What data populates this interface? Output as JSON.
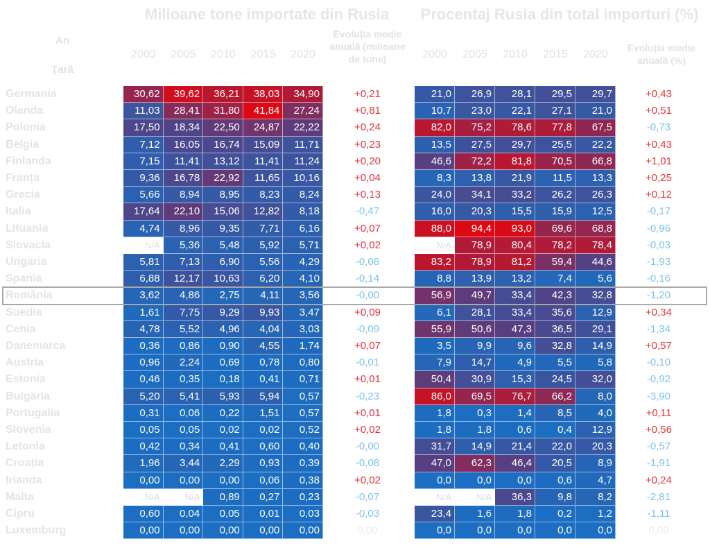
{
  "header": {
    "title_left": "Milioane tone importate din Rusia",
    "title_right": "Procentaj Rusia din total importuri (%)",
    "year_label": "An",
    "country_label": "Țară",
    "change_left": "Evoluția medie anuală (milioane de tone)",
    "change_right": "Evoluția medie anuală (%)"
  },
  "years": [
    "2000",
    "2005",
    "2010",
    "2015",
    "2020"
  ],
  "rows": [
    {
      "country": "Germania",
      "tons": [
        "30,62",
        "39,62",
        "36,21",
        "38,03",
        "34,90"
      ],
      "tons_change": "+0,21",
      "share": [
        "21,0",
        "26,9",
        "28,1",
        "29,5",
        "29,7"
      ],
      "share_change": "+0,43"
    },
    {
      "country": "Olanda",
      "tons": [
        "11,03",
        "28,41",
        "31,80",
        "41,84",
        "27,24"
      ],
      "tons_change": "+0,81",
      "share": [
        "10,7",
        "23,0",
        "22,1",
        "27,1",
        "21,0"
      ],
      "share_change": "+0,51"
    },
    {
      "country": "Polonia",
      "tons": [
        "17,50",
        "18,34",
        "22,50",
        "24,87",
        "22,22"
      ],
      "tons_change": "+0,24",
      "share": [
        "82,0",
        "75,2",
        "78,6",
        "77,8",
        "67,5"
      ],
      "share_change": "-0,73"
    },
    {
      "country": "Belgia",
      "tons": [
        "7,12",
        "16,05",
        "16,74",
        "15,09",
        "11,71"
      ],
      "tons_change": "+0,23",
      "share": [
        "13,5",
        "27,5",
        "29,7",
        "25,5",
        "22,2"
      ],
      "share_change": "+0,43"
    },
    {
      "country": "Finlanda",
      "tons": [
        "7,15",
        "11,41",
        "13,12",
        "11,41",
        "11,24"
      ],
      "tons_change": "+0,20",
      "share": [
        "46,6",
        "72,2",
        "81,8",
        "70,5",
        "66,8"
      ],
      "share_change": "+1,01"
    },
    {
      "country": "Franța",
      "tons": [
        "9,36",
        "16,78",
        "22,92",
        "11,65",
        "10,16"
      ],
      "tons_change": "+0,04",
      "share": [
        "8,3",
        "13,8",
        "21,9",
        "11,5",
        "13,3"
      ],
      "share_change": "+0,25"
    },
    {
      "country": "Grecia",
      "tons": [
        "5,66",
        "8,94",
        "8,95",
        "8,23",
        "8,24"
      ],
      "tons_change": "+0,13",
      "share": [
        "24,0",
        "34,1",
        "33,2",
        "26,2",
        "26,3"
      ],
      "share_change": "+0,12"
    },
    {
      "country": "Italia",
      "tons": [
        "17,64",
        "22,10",
        "15,06",
        "12,82",
        "8,18"
      ],
      "tons_change": "-0,47",
      "share": [
        "16,0",
        "20,3",
        "15,5",
        "15,9",
        "12,5"
      ],
      "share_change": "-0,17"
    },
    {
      "country": "Lituania",
      "tons": [
        "4,74",
        "8,96",
        "9,35",
        "7,71",
        "6,16"
      ],
      "tons_change": "+0,07",
      "share": [
        "88,0",
        "94,4",
        "93,0",
        "69,6",
        "68,8"
      ],
      "share_change": "-0,96"
    },
    {
      "country": "Slovacia",
      "tons": [
        "N/A",
        "5,36",
        "5,48",
        "5,92",
        "5,71"
      ],
      "tons_change": "+0,02",
      "share": [
        "N/A",
        "78,9",
        "80,4",
        "78,2",
        "78,4"
      ],
      "share_change": "-0,03"
    },
    {
      "country": "Ungaria",
      "tons": [
        "5,81",
        "7,13",
        "6,90",
        "5,56",
        "4,29"
      ],
      "tons_change": "-0,08",
      "share": [
        "83,2",
        "78,9",
        "81,2",
        "59,4",
        "44,6"
      ],
      "share_change": "-1,93"
    },
    {
      "country": "Spania",
      "tons": [
        "6,88",
        "12,17",
        "10,63",
        "6,20",
        "4,10"
      ],
      "tons_change": "-0,14",
      "share": [
        "8,8",
        "13,9",
        "13,2",
        "7,4",
        "5,6"
      ],
      "share_change": "-0,16"
    },
    {
      "country": "România",
      "tons": [
        "3,62",
        "4,86",
        "2,75",
        "4,11",
        "3,56"
      ],
      "tons_change": "-0,00",
      "share": [
        "56,9",
        "49,7",
        "33,4",
        "42,3",
        "32,8"
      ],
      "share_change": "-1,20",
      "highlighted": true
    },
    {
      "country": "Suedia",
      "tons": [
        "1,61",
        "7,75",
        "9,29",
        "9,93",
        "3,47"
      ],
      "tons_change": "+0,09",
      "share": [
        "6,1",
        "28,1",
        "33,4",
        "35,6",
        "12,9"
      ],
      "share_change": "+0,34"
    },
    {
      "country": "Cehia",
      "tons": [
        "4,78",
        "5,52",
        "4,96",
        "4,04",
        "3,03"
      ],
      "tons_change": "-0,09",
      "share": [
        "55,9",
        "50,6",
        "47,3",
        "36,5",
        "29,1"
      ],
      "share_change": "-1,34"
    },
    {
      "country": "Danemarca",
      "tons": [
        "0,36",
        "0,86",
        "0,90",
        "4,55",
        "1,74"
      ],
      "tons_change": "+0,07",
      "share": [
        "3,5",
        "9,9",
        "9,6",
        "32,8",
        "14,9"
      ],
      "share_change": "+0,57"
    },
    {
      "country": "Austria",
      "tons": [
        "0,96",
        "2,24",
        "0,69",
        "0,78",
        "0,80"
      ],
      "tons_change": "-0,01",
      "share": [
        "7,9",
        "14,7",
        "4,9",
        "5,5",
        "5,8"
      ],
      "share_change": "-0,10"
    },
    {
      "country": "Estonia",
      "tons": [
        "0,46",
        "0,35",
        "0,18",
        "0,41",
        "0,71"
      ],
      "tons_change": "+0,01",
      "share": [
        "50,4",
        "30,9",
        "15,3",
        "24,5",
        "32,0"
      ],
      "share_change": "-0,92"
    },
    {
      "country": "Bulgaria",
      "tons": [
        "5,20",
        "5,41",
        "5,93",
        "5,94",
        "0,57"
      ],
      "tons_change": "-0,23",
      "share": [
        "86,0",
        "69,5",
        "76,7",
        "66,2",
        "8,0"
      ],
      "share_change": "-3,90"
    },
    {
      "country": "Portugalia",
      "tons": [
        "0,31",
        "0,06",
        "0,22",
        "1,51",
        "0,57"
      ],
      "tons_change": "+0,01",
      "share": [
        "1,8",
        "0,3",
        "1,4",
        "8,5",
        "4,0"
      ],
      "share_change": "+0,11"
    },
    {
      "country": "Slovenia",
      "tons": [
        "0,05",
        "0,05",
        "0,02",
        "0,02",
        "0,52"
      ],
      "tons_change": "+0,02",
      "share": [
        "1,8",
        "1,8",
        "0,6",
        "0,4",
        "12,9"
      ],
      "share_change": "+0,56"
    },
    {
      "country": "Letonia",
      "tons": [
        "0,42",
        "0,34",
        "0,41",
        "0,60",
        "0,40"
      ],
      "tons_change": "-0,00",
      "share": [
        "31,7",
        "14,9",
        "21,4",
        "22,0",
        "20,3"
      ],
      "share_change": "-0,57"
    },
    {
      "country": "Croația",
      "tons": [
        "1,96",
        "3,44",
        "2,29",
        "0,93",
        "0,39"
      ],
      "tons_change": "-0,08",
      "share": [
        "47,0",
        "62,3",
        "46,4",
        "20,5",
        "8,9"
      ],
      "share_change": "-1,91"
    },
    {
      "country": "Irlanda",
      "tons": [
        "0,00",
        "0,00",
        "0,00",
        "0,06",
        "0,38"
      ],
      "tons_change": "+0,02",
      "share": [
        "0,0",
        "0,0",
        "0,0",
        "0,6",
        "4,7"
      ],
      "share_change": "+0,24"
    },
    {
      "country": "Malta",
      "tons": [
        "N/A",
        "N/A",
        "0,89",
        "0,27",
        "0,23"
      ],
      "tons_change": "-0,07",
      "share": [
        "N/A",
        "N/A",
        "36,3",
        "9,8",
        "8,2"
      ],
      "share_change": "-2,81"
    },
    {
      "country": "Cipru",
      "tons": [
        "0,60",
        "0,04",
        "0,05",
        "0,01",
        "0,03"
      ],
      "tons_change": "-0,03",
      "share": [
        "23,4",
        "1,6",
        "1,8",
        "0,2",
        "1,2"
      ],
      "share_change": "-1,11"
    },
    {
      "country": "Luxemburg",
      "tons": [
        "0,00",
        "0,00",
        "0,00",
        "0,00",
        "0,00"
      ],
      "tons_change": "0,00",
      "share": [
        "0,0",
        "0,0",
        "0,0",
        "0,0",
        "0,0"
      ],
      "share_change": "0,00"
    }
  ]
}
